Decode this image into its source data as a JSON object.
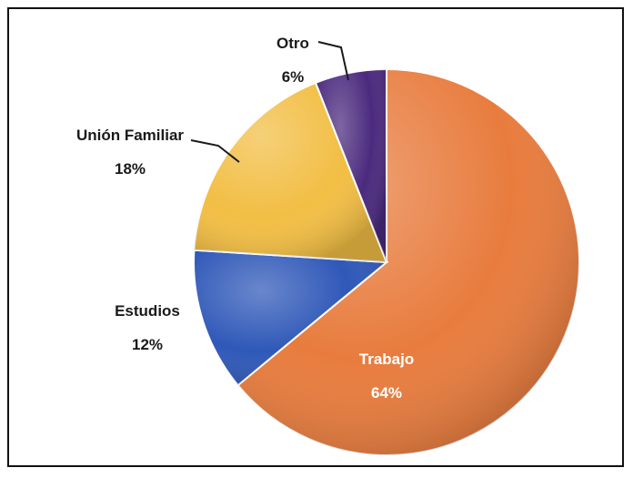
{
  "chart_data": {
    "type": "pie",
    "slices": [
      {
        "label": "Trabajo",
        "value": 64,
        "value_label": "64%",
        "color": "#E87C3E"
      },
      {
        "label": "Estudios",
        "value": 12,
        "value_label": "12%",
        "color": "#2F58B8"
      },
      {
        "label": "Unión Familiar",
        "value": 18,
        "value_label": "18%",
        "color": "#F2BE44"
      },
      {
        "label": "Otro",
        "value": 6,
        "value_label": "6%",
        "color": "#4B2A7E"
      }
    ],
    "legend": "none",
    "style": "3d-shaded"
  }
}
